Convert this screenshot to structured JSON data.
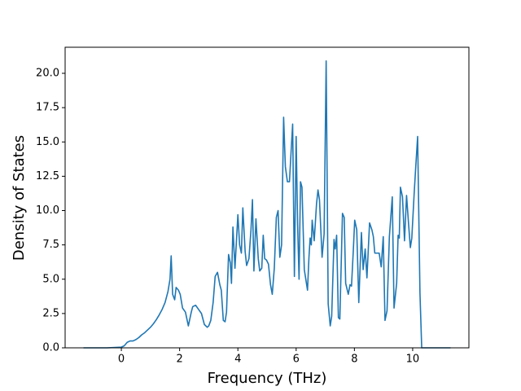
{
  "chart_data": {
    "type": "line",
    "xlabel": "Frequency (THz)",
    "ylabel": "Density of States",
    "xlim": [
      -1.93,
      11.93
    ],
    "ylim": [
      0,
      21.9
    ],
    "xticks": [
      0,
      2,
      4,
      6,
      8,
      10
    ],
    "yticks": [
      {
        "value": 0,
        "label": "0.0"
      },
      {
        "value": 2.5,
        "label": "2.5"
      },
      {
        "value": 5,
        "label": "5.0"
      },
      {
        "value": 7.5,
        "label": "7.5"
      },
      {
        "value": 10,
        "label": "10.0"
      },
      {
        "value": 12.5,
        "label": "12.5"
      },
      {
        "value": 15,
        "label": "15.0"
      },
      {
        "value": 17.5,
        "label": "17.5"
      },
      {
        "value": 20,
        "label": "20.0"
      }
    ],
    "grid": false,
    "x": [
      -1.3,
      -0.5,
      0,
      0.1,
      0.2,
      0.3,
      0.4,
      0.5,
      0.6,
      0.7,
      0.8,
      0.9,
      1.0,
      1.1,
      1.2,
      1.3,
      1.4,
      1.5,
      1.6,
      1.67,
      1.71,
      1.76,
      1.83,
      1.88,
      1.96,
      2.02,
      2.1,
      2.2,
      2.3,
      2.4,
      2.45,
      2.55,
      2.65,
      2.75,
      2.85,
      2.95,
      3.0,
      3.07,
      3.15,
      3.22,
      3.3,
      3.38,
      3.43,
      3.5,
      3.56,
      3.61,
      3.68,
      3.74,
      3.78,
      3.83,
      3.9,
      4.0,
      4.06,
      4.12,
      4.17,
      4.25,
      4.3,
      4.38,
      4.45,
      4.5,
      4.55,
      4.62,
      4.7,
      4.75,
      4.82,
      4.87,
      4.92,
      4.98,
      5.05,
      5.12,
      5.18,
      5.25,
      5.32,
      5.38,
      5.44,
      5.5,
      5.57,
      5.63,
      5.7,
      5.77,
      5.84,
      5.88,
      5.94,
      6.0,
      6.05,
      6.1,
      6.15,
      6.2,
      6.28,
      6.39,
      6.44,
      6.48,
      6.52,
      6.55,
      6.62,
      6.7,
      6.75,
      6.8,
      6.89,
      6.96,
      7.03,
      7.1,
      7.17,
      7.22,
      7.3,
      7.34,
      7.39,
      7.45,
      7.5,
      7.59,
      7.65,
      7.7,
      7.79,
      7.85,
      7.9,
      7.96,
      8.01,
      8.08,
      8.15,
      8.24,
      8.3,
      8.37,
      8.43,
      8.52,
      8.6,
      8.65,
      8.7,
      8.8,
      8.85,
      8.92,
      8.99,
      9.05,
      9.12,
      9.2,
      9.3,
      9.36,
      9.45,
      9.5,
      9.54,
      9.58,
      9.65,
      9.72,
      9.79,
      9.86,
      9.92,
      9.97,
      10.05,
      10.1,
      10.17,
      10.25,
      10.31,
      10.6,
      11.3
    ],
    "series": [
      {
        "color": "#1f77b4",
        "values": [
          0,
          0,
          0.05,
          0.15,
          0.4,
          0.5,
          0.5,
          0.6,
          0.75,
          0.95,
          1.1,
          1.3,
          1.5,
          1.75,
          2.05,
          2.4,
          2.8,
          3.3,
          4.1,
          5.0,
          6.7,
          3.9,
          3.5,
          4.4,
          4.2,
          3.9,
          2.9,
          2.6,
          1.6,
          2.6,
          3.0,
          3.1,
          2.8,
          2.5,
          1.7,
          1.5,
          1.6,
          2.0,
          3.3,
          5.2,
          5.5,
          4.6,
          4.2,
          2.0,
          1.9,
          2.6,
          6.8,
          6.2,
          4.7,
          8.8,
          5.8,
          9.7,
          7.5,
          6.9,
          10.2,
          7.0,
          6.0,
          6.5,
          8.6,
          10.8,
          5.6,
          9.4,
          6.5,
          5.6,
          5.8,
          8.2,
          6.5,
          6.4,
          6.1,
          4.6,
          3.9,
          5.8,
          9.5,
          10.0,
          6.6,
          7.5,
          16.8,
          13.2,
          12.1,
          12.1,
          14.8,
          16.3,
          5.2,
          15.4,
          9.0,
          5.0,
          12.1,
          11.7,
          5.7,
          4.2,
          6.6,
          8.0,
          7.5,
          9.3,
          7.8,
          10.5,
          11.5,
          10.8,
          6.6,
          8.3,
          20.9,
          3.2,
          1.6,
          2.3,
          7.9,
          7.2,
          8.2,
          2.2,
          2.1,
          9.8,
          9.5,
          4.7,
          3.9,
          4.6,
          4.5,
          7.0,
          9.3,
          8.6,
          3.3,
          8.4,
          5.7,
          7.2,
          5.1,
          9.1,
          8.6,
          8.1,
          6.9,
          6.9,
          6.9,
          5.9,
          8.1,
          2.0,
          2.7,
          8.1,
          11.0,
          2.9,
          4.7,
          8.2,
          8.0,
          11.7,
          11.0,
          7.8,
          11.1,
          9.0,
          7.3,
          8.0,
          11.2,
          13.0,
          15.4,
          4.0,
          0,
          0,
          0
        ]
      }
    ]
  }
}
